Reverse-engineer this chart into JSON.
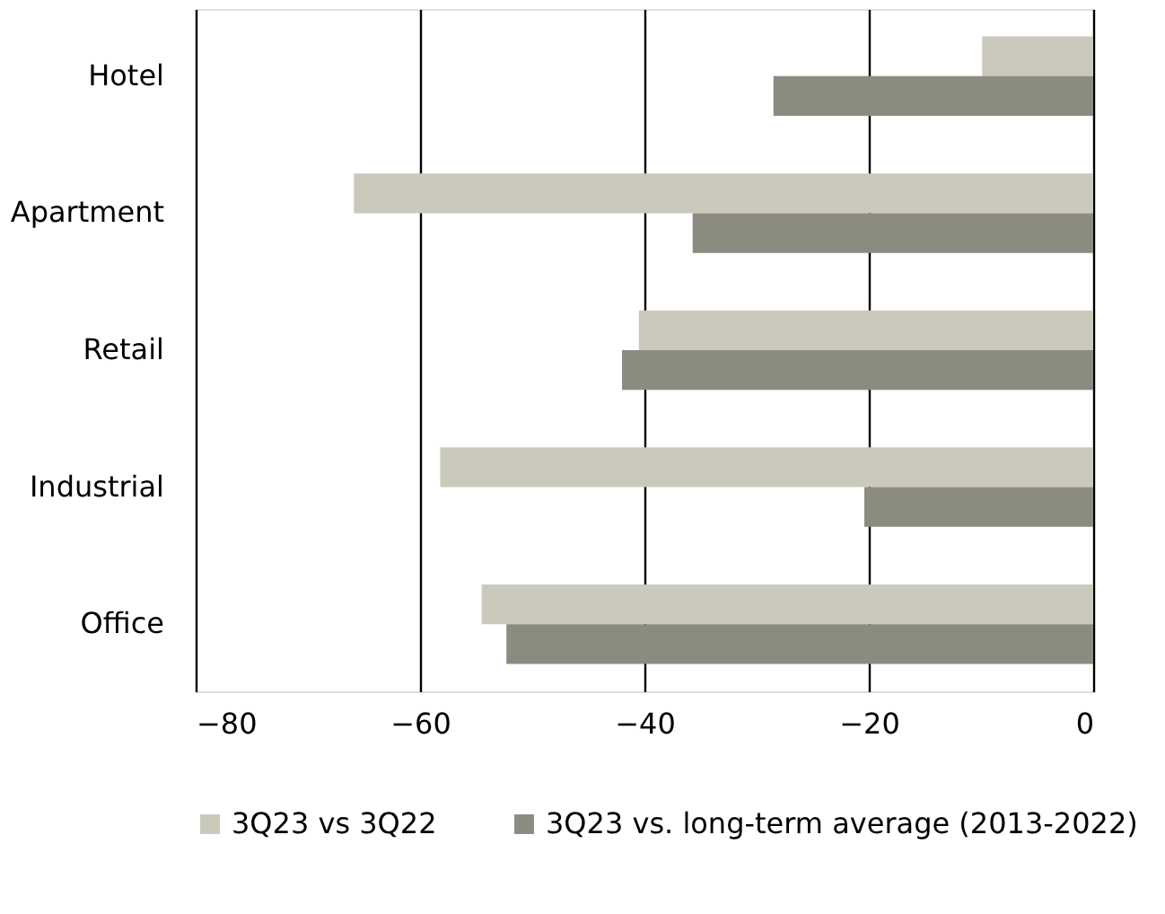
{
  "chart_data": {
    "type": "bar",
    "orientation": "horizontal",
    "categories": [
      "Hotel",
      "Apartment",
      "Retail",
      "Industrial",
      "Office"
    ],
    "series": [
      {
        "name": "3Q23 vs 3Q22",
        "color": "#cbc9bb",
        "values": [
          -9.9,
          -65.9,
          -40.5,
          -58.2,
          -54.5
        ]
      },
      {
        "name": "3Q23 vs. long-term average (2013-2022)",
        "color": "#8b8b80",
        "values": [
          -28.5,
          -35.7,
          -42.0,
          -20.4,
          -52.3
        ]
      }
    ],
    "xlim": [
      -80,
      0
    ],
    "xticks": [
      -80,
      -60,
      -40,
      -20,
      0
    ],
    "grid": "x",
    "legend": "bottom"
  }
}
